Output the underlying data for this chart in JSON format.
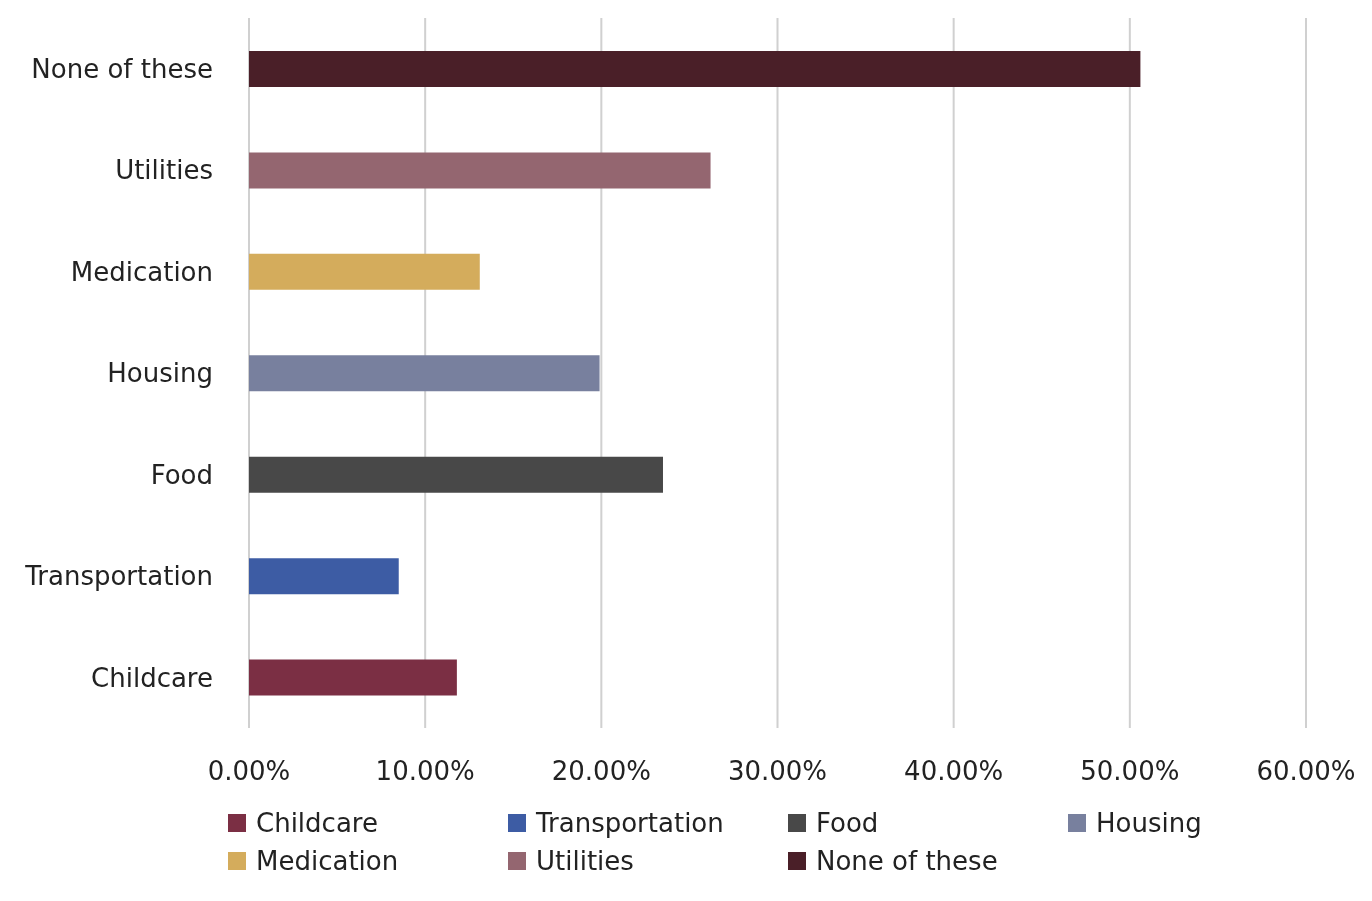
{
  "chart_data": {
    "type": "bar",
    "orientation": "horizontal",
    "stacked": true,
    "categories": [
      "None of these",
      "Utilities",
      "Medication",
      "Housing",
      "Food",
      "Transportation",
      "Childcare"
    ],
    "series": [
      {
        "name": "Childcare",
        "color": "#7b2f44",
        "values": [
          null,
          null,
          null,
          null,
          null,
          null,
          11.8
        ]
      },
      {
        "name": "Transportation",
        "color": "#3d5ca4",
        "values": [
          null,
          null,
          null,
          null,
          null,
          8.5,
          null
        ]
      },
      {
        "name": "Food",
        "color": "#484848",
        "values": [
          null,
          null,
          null,
          null,
          23.5,
          null,
          null
        ]
      },
      {
        "name": "Housing",
        "color": "#78809e",
        "values": [
          null,
          null,
          null,
          19.9,
          null,
          null,
          null
        ]
      },
      {
        "name": "Medication",
        "color": "#d4ac5c",
        "values": [
          null,
          null,
          13.1,
          null,
          null,
          null,
          null
        ]
      },
      {
        "name": "Utilities",
        "color": "#946670",
        "values": [
          null,
          26.2,
          null,
          null,
          null,
          null,
          null
        ]
      },
      {
        "name": "None of these",
        "color": "#4a1f28",
        "values": [
          50.6,
          null,
          null,
          null,
          null,
          null,
          null
        ]
      }
    ],
    "xlim": [
      0,
      60
    ],
    "xticks": [
      {
        "value": 0,
        "label": "0.00%"
      },
      {
        "value": 10,
        "label": "10.00%"
      },
      {
        "value": 20,
        "label": "20.00%"
      },
      {
        "value": 30,
        "label": "30.00%"
      },
      {
        "value": 40,
        "label": "40.00%"
      },
      {
        "value": 50,
        "label": "50.00%"
      },
      {
        "value": 60,
        "label": "60.00%"
      }
    ],
    "grid": "x",
    "legend": "bottom"
  }
}
